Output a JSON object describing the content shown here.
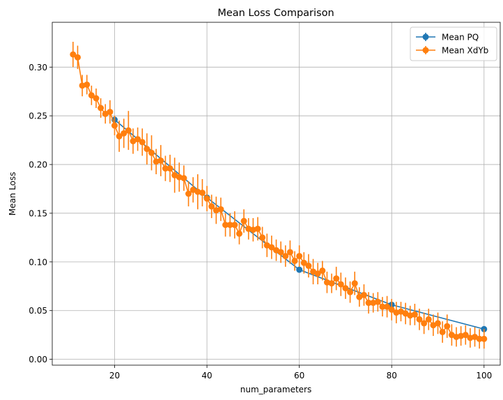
{
  "chart_data": {
    "type": "line",
    "title": "Mean Loss Comparison",
    "xlabel": "num_parameters",
    "ylabel": "Mean Loss",
    "xlim": [
      6.5,
      103.5
    ],
    "ylim": [
      -0.006,
      0.346
    ],
    "xticks": [
      20,
      40,
      60,
      80,
      100
    ],
    "yticks": [
      0.0,
      0.05,
      0.1,
      0.15,
      0.2,
      0.25,
      0.3
    ],
    "xtick_labels": [
      "20",
      "40",
      "60",
      "80",
      "100"
    ],
    "ytick_labels": [
      "0.00",
      "0.05",
      "0.10",
      "0.15",
      "0.20",
      "0.25",
      "0.30"
    ],
    "grid": true,
    "legend_position": "top-right",
    "series": [
      {
        "name": "Mean PQ",
        "color": "#1f77b4",
        "x": [
          20,
          40,
          60,
          80,
          100
        ],
        "y": [
          0.246,
          0.166,
          0.092,
          0.056,
          0.031
        ],
        "err": [
          0.003,
          0.003,
          0.003,
          0.003,
          0.003
        ]
      },
      {
        "name": "Mean XdYb",
        "color": "#ff7f0e",
        "x": [
          11,
          12,
          13,
          14,
          15,
          16,
          17,
          18,
          19,
          20,
          21,
          22,
          23,
          24,
          25,
          26,
          27,
          28,
          29,
          30,
          31,
          32,
          33,
          34,
          35,
          36,
          37,
          38,
          39,
          40,
          41,
          42,
          43,
          44,
          45,
          46,
          47,
          48,
          49,
          50,
          51,
          52,
          53,
          54,
          55,
          56,
          57,
          58,
          59,
          60,
          61,
          62,
          63,
          64,
          65,
          66,
          67,
          68,
          69,
          70,
          71,
          72,
          73,
          74,
          75,
          76,
          77,
          78,
          79,
          80,
          81,
          82,
          83,
          84,
          85,
          86,
          87,
          88,
          89,
          90,
          91,
          92,
          93,
          94,
          95,
          96,
          97,
          98,
          99,
          100
        ],
        "y": [
          0.313,
          0.31,
          0.281,
          0.282,
          0.271,
          0.268,
          0.258,
          0.252,
          0.254,
          0.24,
          0.229,
          0.232,
          0.235,
          0.224,
          0.226,
          0.223,
          0.216,
          0.212,
          0.203,
          0.204,
          0.196,
          0.196,
          0.189,
          0.187,
          0.186,
          0.17,
          0.174,
          0.172,
          0.171,
          0.165,
          0.157,
          0.153,
          0.154,
          0.138,
          0.138,
          0.138,
          0.129,
          0.142,
          0.134,
          0.133,
          0.134,
          0.125,
          0.117,
          0.115,
          0.112,
          0.11,
          0.106,
          0.11,
          0.101,
          0.106,
          0.099,
          0.096,
          0.09,
          0.088,
          0.091,
          0.079,
          0.078,
          0.083,
          0.077,
          0.073,
          0.069,
          0.078,
          0.064,
          0.066,
          0.058,
          0.058,
          0.059,
          0.054,
          0.054,
          0.051,
          0.048,
          0.049,
          0.047,
          0.045,
          0.046,
          0.041,
          0.037,
          0.041,
          0.035,
          0.037,
          0.028,
          0.034,
          0.025,
          0.023,
          0.024,
          0.025,
          0.022,
          0.023,
          0.021,
          0.021
        ],
        "err": [
          0.013,
          0.012,
          0.011,
          0.01,
          0.01,
          0.01,
          0.01,
          0.01,
          0.012,
          0.01,
          0.016,
          0.015,
          0.02,
          0.013,
          0.012,
          0.014,
          0.016,
          0.018,
          0.013,
          0.016,
          0.013,
          0.014,
          0.018,
          0.015,
          0.013,
          0.013,
          0.013,
          0.018,
          0.014,
          0.013,
          0.012,
          0.014,
          0.012,
          0.012,
          0.012,
          0.014,
          0.011,
          0.012,
          0.011,
          0.012,
          0.012,
          0.011,
          0.012,
          0.012,
          0.011,
          0.011,
          0.011,
          0.012,
          0.01,
          0.011,
          0.011,
          0.012,
          0.013,
          0.011,
          0.01,
          0.011,
          0.01,
          0.012,
          0.012,
          0.011,
          0.011,
          0.012,
          0.01,
          0.011,
          0.011,
          0.01,
          0.01,
          0.01,
          0.011,
          0.011,
          0.011,
          0.01,
          0.011,
          0.01,
          0.011,
          0.011,
          0.011,
          0.011,
          0.011,
          0.011,
          0.011,
          0.012,
          0.011,
          0.01,
          0.01,
          0.01,
          0.01,
          0.01,
          0.01,
          0.01
        ]
      }
    ]
  }
}
